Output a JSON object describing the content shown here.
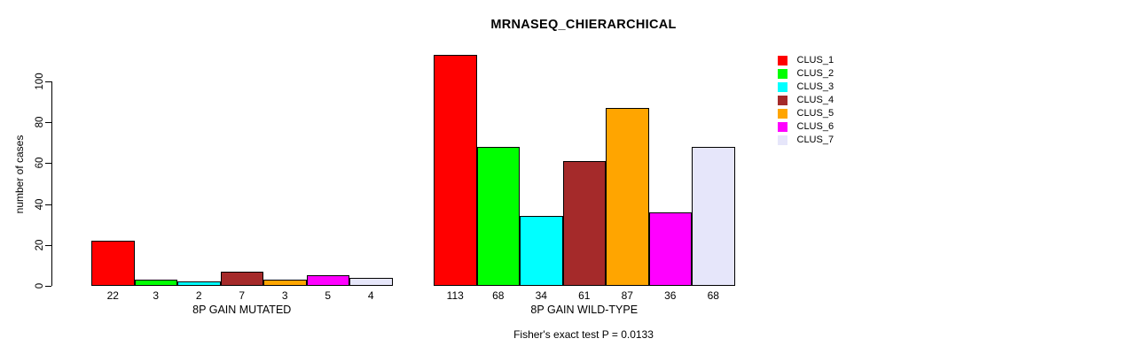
{
  "title": "MRNASEQ_CHIERARCHICAL",
  "footer_note": "Fisher's exact test P = 0.0133",
  "y_axis": {
    "label": "number of cases",
    "ticks": [
      0,
      20,
      40,
      60,
      80,
      100
    ]
  },
  "legend": {
    "items": [
      {
        "label": "CLUS_1",
        "color": "#FF0000"
      },
      {
        "label": "CLUS_2",
        "color": "#00FF00"
      },
      {
        "label": "CLUS_3",
        "color": "#00FFFF"
      },
      {
        "label": "CLUS_4",
        "color": "#A52A2A"
      },
      {
        "label": "CLUS_5",
        "color": "#FFA500"
      },
      {
        "label": "CLUS_6",
        "color": "#FF00FF"
      },
      {
        "label": "CLUS_7",
        "color": "#E6E6FA"
      }
    ]
  },
  "chart_data": {
    "type": "bar",
    "title": "MRNASEQ_CHIERARCHICAL",
    "xlabel": "",
    "ylabel": "number of cases",
    "ylim": [
      0,
      113
    ],
    "yticks": [
      0,
      20,
      40,
      60,
      80,
      100
    ],
    "grid": false,
    "legend_position": "right",
    "groups": [
      "8P GAIN MUTATED",
      "8P GAIN WILD-TYPE"
    ],
    "series": [
      {
        "name": "CLUS_1",
        "color": "#FF0000",
        "values": [
          22,
          113
        ]
      },
      {
        "name": "CLUS_2",
        "color": "#00FF00",
        "values": [
          3,
          68
        ]
      },
      {
        "name": "CLUS_3",
        "color": "#00FFFF",
        "values": [
          2,
          34
        ]
      },
      {
        "name": "CLUS_4",
        "color": "#A52A2A",
        "values": [
          7,
          61
        ]
      },
      {
        "name": "CLUS_5",
        "color": "#FFA500",
        "values": [
          3,
          87
        ]
      },
      {
        "name": "CLUS_6",
        "color": "#FF00FF",
        "values": [
          5,
          36
        ]
      },
      {
        "name": "CLUS_7",
        "color": "#E6E6FA",
        "values": [
          4,
          68
        ]
      }
    ],
    "bar_value_labels": [
      [
        22,
        3,
        2,
        7,
        3,
        5,
        4
      ],
      [
        113,
        68,
        34,
        61,
        87,
        36,
        68
      ]
    ],
    "annotation": "Fisher's exact test P = 0.0133"
  }
}
